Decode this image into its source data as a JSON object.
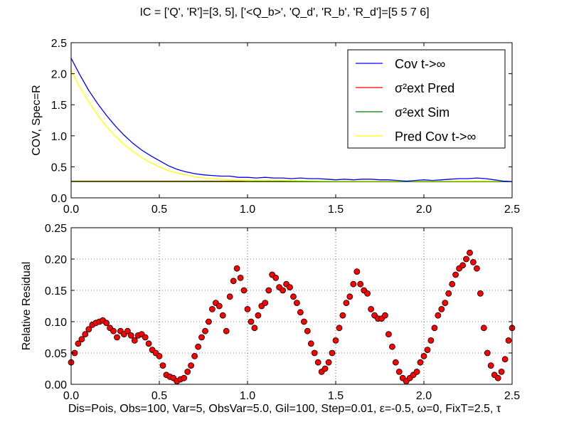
{
  "figure": {
    "title": "IC = ['Q', 'R']=[3, 5], ['<Q_b>', 'Q_d', 'R_b', 'R_d']=[5 5 7 6]",
    "caption": "Dis=Pois, Obs=100, Var=5, ObsVar=5.0, Gil=100, Step=0.01, ε=-0.5, ω=0, FixT=2.5, τ"
  },
  "chart_data": [
    {
      "type": "line",
      "title": "",
      "xlabel": "",
      "ylabel": "COV, Spec=R",
      "xlim": [
        0,
        2.5
      ],
      "ylim": [
        0,
        2.5
      ],
      "xticks": [
        "0.0",
        "0.5",
        "1.0",
        "1.5",
        "2.0",
        "2.5"
      ],
      "yticks": [
        "0.0",
        "0.5",
        "1.0",
        "1.5",
        "2.0",
        "2.5"
      ],
      "grid": false,
      "legend_position": "top-right",
      "series": [
        {
          "name": "Cov t->∞",
          "color": "#0000ff",
          "x": [
            0,
            0.05,
            0.1,
            0.15,
            0.2,
            0.25,
            0.3,
            0.35,
            0.4,
            0.45,
            0.5,
            0.55,
            0.6,
            0.65,
            0.7,
            0.75,
            0.8,
            0.85,
            0.9,
            0.95,
            1.0,
            1.05,
            1.1,
            1.15,
            1.2,
            1.25,
            1.3,
            1.35,
            1.4,
            1.45,
            1.5,
            1.55,
            1.6,
            1.65,
            1.7,
            1.75,
            1.8,
            1.85,
            1.9,
            1.95,
            2.0,
            2.05,
            2.1,
            2.15,
            2.2,
            2.25,
            2.3,
            2.35,
            2.4,
            2.45,
            2.5
          ],
          "y": [
            2.25,
            1.98,
            1.73,
            1.52,
            1.33,
            1.16,
            1.01,
            0.88,
            0.77,
            0.68,
            0.6,
            0.52,
            0.46,
            0.42,
            0.39,
            0.37,
            0.36,
            0.35,
            0.35,
            0.33,
            0.33,
            0.32,
            0.33,
            0.32,
            0.32,
            0.31,
            0.32,
            0.31,
            0.31,
            0.3,
            0.29,
            0.3,
            0.29,
            0.3,
            0.3,
            0.29,
            0.29,
            0.28,
            0.27,
            0.28,
            0.29,
            0.28,
            0.29,
            0.3,
            0.31,
            0.31,
            0.32,
            0.31,
            0.29,
            0.27,
            0.26
          ]
        },
        {
          "name": "σ²ext Pred",
          "color": "#ff0000",
          "x": [
            0,
            2.5
          ],
          "y": [
            0.27,
            0.27
          ]
        },
        {
          "name": "σ²ext Sim",
          "color": "#008000",
          "x": [
            0,
            2.5
          ],
          "y": [
            0.26,
            0.26
          ]
        },
        {
          "name": "Pred Cov t->∞",
          "color": "#ffff00",
          "x": [
            0,
            0.05,
            0.1,
            0.15,
            0.2,
            0.25,
            0.3,
            0.35,
            0.4,
            0.45,
            0.5,
            0.55,
            0.6,
            0.65,
            0.7,
            0.75,
            0.8,
            0.9,
            1.0,
            1.2,
            1.5,
            2.0,
            2.5
          ],
          "y": [
            2.05,
            1.78,
            1.55,
            1.34,
            1.15,
            1.0,
            0.86,
            0.75,
            0.65,
            0.57,
            0.5,
            0.44,
            0.4,
            0.37,
            0.34,
            0.32,
            0.31,
            0.29,
            0.28,
            0.28,
            0.27,
            0.27,
            0.27
          ]
        }
      ]
    },
    {
      "type": "scatter",
      "title": "",
      "xlabel": "",
      "ylabel": "Relative Residual",
      "xlim": [
        0,
        2.5
      ],
      "ylim": [
        0,
        0.25
      ],
      "xticks": [
        "0.0",
        "0.5",
        "1.0",
        "1.5",
        "2.0",
        "2.5"
      ],
      "yticks": [
        "0.00",
        "0.05",
        "0.10",
        "0.15",
        "0.20",
        "0.25"
      ],
      "grid": true,
      "marker_color": "#ff0000",
      "x": [
        0.0,
        0.02,
        0.04,
        0.06,
        0.08,
        0.1,
        0.12,
        0.14,
        0.16,
        0.18,
        0.2,
        0.22,
        0.24,
        0.26,
        0.28,
        0.3,
        0.32,
        0.34,
        0.36,
        0.38,
        0.4,
        0.42,
        0.44,
        0.46,
        0.48,
        0.5,
        0.52,
        0.54,
        0.56,
        0.58,
        0.6,
        0.62,
        0.64,
        0.66,
        0.68,
        0.7,
        0.72,
        0.74,
        0.76,
        0.78,
        0.8,
        0.82,
        0.84,
        0.86,
        0.88,
        0.9,
        0.92,
        0.94,
        0.96,
        0.98,
        1.0,
        1.02,
        1.04,
        1.06,
        1.08,
        1.1,
        1.12,
        1.14,
        1.16,
        1.18,
        1.2,
        1.22,
        1.24,
        1.26,
        1.28,
        1.3,
        1.32,
        1.34,
        1.36,
        1.38,
        1.4,
        1.42,
        1.44,
        1.46,
        1.48,
        1.5,
        1.52,
        1.54,
        1.56,
        1.58,
        1.6,
        1.62,
        1.64,
        1.66,
        1.68,
        1.7,
        1.72,
        1.74,
        1.76,
        1.78,
        1.8,
        1.82,
        1.84,
        1.86,
        1.88,
        1.9,
        1.92,
        1.94,
        1.96,
        1.98,
        2.0,
        2.02,
        2.04,
        2.06,
        2.08,
        2.1,
        2.12,
        2.14,
        2.16,
        2.18,
        2.2,
        2.22,
        2.24,
        2.26,
        2.28,
        2.3,
        2.32,
        2.34,
        2.36,
        2.38,
        2.4,
        2.42,
        2.44,
        2.46,
        2.48,
        2.5
      ],
      "y": [
        0.035,
        0.05,
        0.065,
        0.072,
        0.08,
        0.088,
        0.095,
        0.098,
        0.1,
        0.102,
        0.098,
        0.09,
        0.085,
        0.075,
        0.085,
        0.08,
        0.085,
        0.078,
        0.07,
        0.078,
        0.08,
        0.075,
        0.065,
        0.055,
        0.05,
        0.045,
        0.03,
        0.015,
        0.012,
        0.01,
        0.005,
        0.008,
        0.01,
        0.02,
        0.03,
        0.045,
        0.06,
        0.075,
        0.085,
        0.1,
        0.12,
        0.13,
        0.125,
        0.11,
        0.085,
        0.14,
        0.165,
        0.185,
        0.17,
        0.15,
        0.12,
        0.1,
        0.09,
        0.11,
        0.125,
        0.13,
        0.15,
        0.175,
        0.17,
        0.155,
        0.15,
        0.16,
        0.155,
        0.14,
        0.13,
        0.115,
        0.1,
        0.085,
        0.065,
        0.05,
        0.035,
        0.02,
        0.025,
        0.035,
        0.05,
        0.07,
        0.09,
        0.11,
        0.13,
        0.14,
        0.16,
        0.18,
        0.16,
        0.15,
        0.145,
        0.12,
        0.11,
        0.105,
        0.105,
        0.11,
        0.08,
        0.06,
        0.035,
        0.02,
        0.01,
        0.005,
        0.01,
        0.015,
        0.02,
        0.035,
        0.045,
        0.055,
        0.07,
        0.09,
        0.11,
        0.12,
        0.13,
        0.145,
        0.16,
        0.175,
        0.185,
        0.19,
        0.2,
        0.21,
        0.195,
        0.185,
        0.145,
        0.09,
        0.05,
        0.03,
        0.015,
        0.01,
        0.02,
        0.04,
        0.07,
        0.09
      ]
    }
  ]
}
